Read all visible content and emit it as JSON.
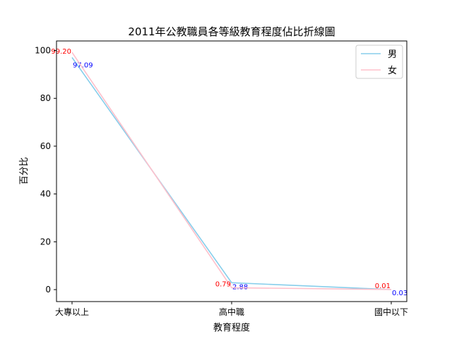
{
  "chart_data": {
    "type": "line",
    "title": "2011年公教職員各等級教育程度佔比折線圖",
    "xlabel": "教育程度",
    "ylabel": "百分比",
    "categories": [
      "大專以上",
      "高中職",
      "國中以下"
    ],
    "ylim": [
      -5,
      104
    ],
    "yticks": [
      0,
      20,
      40,
      60,
      80,
      100
    ],
    "ytick_labels": [
      "0",
      "20",
      "40",
      "60",
      "80",
      "100"
    ],
    "grid": false,
    "legend_position": "top-right",
    "series": [
      {
        "name": "男",
        "values": [
          97.09,
          2.88,
          0.03
        ],
        "labels": [
          "97.09",
          "2.88",
          "0.03"
        ],
        "color": "#87ceeb",
        "label_color": "#0000ff"
      },
      {
        "name": "女",
        "values": [
          99.2,
          0.79,
          0.01
        ],
        "labels": [
          "99.20",
          "0.79",
          "0.01"
        ],
        "color": "#ffc0cb",
        "label_color": "#ff0000"
      }
    ]
  }
}
